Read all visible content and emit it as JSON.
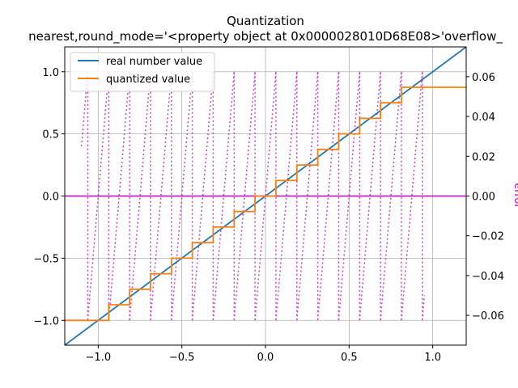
{
  "chart_data": {
    "type": "line",
    "title": "Quantization",
    "subtitle": "nearest,round_mode='<property object at 0x0000028010D68E08>'overflow_",
    "xlim": [
      -1.2,
      1.2
    ],
    "ylim": [
      -1.2,
      1.2
    ],
    "y2lim": [
      -0.075,
      0.075
    ],
    "xticks": [
      -1.0,
      -0.5,
      0.0,
      0.5,
      1.0
    ],
    "xtick_labels": [
      "−1.0",
      "−0.5",
      "0.0",
      "0.5",
      "1.0"
    ],
    "yticks": [
      -1.0,
      -0.5,
      0.0,
      0.5,
      1.0
    ],
    "ytick_labels": [
      "−1.0",
      "−0.5",
      "0.0",
      "0.5",
      "1.0"
    ],
    "y2ticks": [
      -0.06,
      -0.04,
      -0.02,
      0.0,
      0.02,
      0.04,
      0.06
    ],
    "y2tick_labels": [
      "−0.06",
      "−0.04",
      "−0.02",
      "0.00",
      "0.02",
      "0.04",
      "0.06"
    ],
    "y2label": "error",
    "grid": true,
    "legend_position": "top-left",
    "series": [
      {
        "name": "real number value",
        "color": "#1f77b4",
        "style": "solid",
        "x": [
          -1.2,
          1.2
        ],
        "y": [
          -1.2,
          1.2
        ]
      },
      {
        "name": "quantized value",
        "color": "#ff7f0e",
        "style": "step",
        "step": 0.125,
        "x_range": [
          -1.2,
          1.2
        ],
        "y_min": -1.0,
        "y_max": 0.875
      },
      {
        "name": "error",
        "axis": "right",
        "color": "#cc44cc",
        "style": "dotted",
        "step": 0.125,
        "x_range": [
          -1.1,
          0.95
        ]
      }
    ],
    "zero_line_color": "#c000c0"
  }
}
